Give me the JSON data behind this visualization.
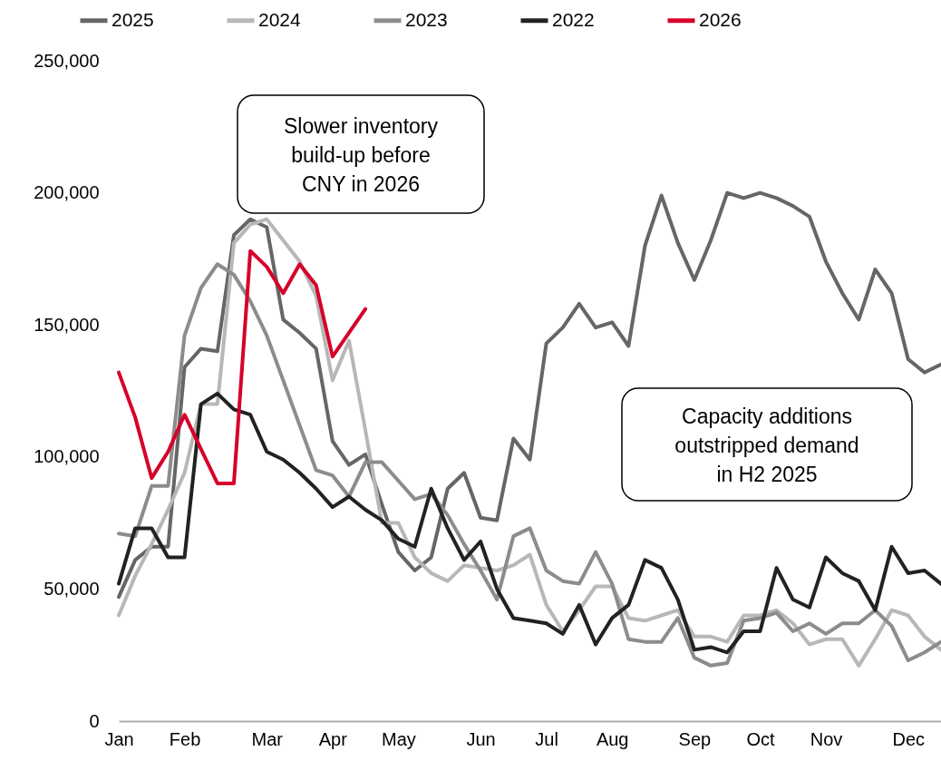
{
  "chart_data": {
    "type": "line",
    "categories": [
      "Jan",
      null,
      null,
      null,
      "Feb",
      null,
      null,
      null,
      null,
      "Mar",
      null,
      null,
      null,
      "Apr",
      null,
      null,
      null,
      "May",
      null,
      null,
      null,
      null,
      "Jun",
      null,
      null,
      null,
      "Jul",
      null,
      null,
      null,
      "Aug",
      null,
      null,
      null,
      null,
      "Sep",
      null,
      null,
      null,
      "Oct",
      null,
      null,
      null,
      "Nov",
      null,
      null,
      null,
      null,
      "Dec",
      null,
      null
    ],
    "series": [
      {
        "name": "2025",
        "color": "#666666",
        "values": [
          47000,
          61000,
          66000,
          66000,
          134000,
          141000,
          140000,
          184000,
          190000,
          187000,
          152000,
          147000,
          141000,
          106000,
          97000,
          101000,
          82000,
          64000,
          57000,
          62000,
          88000,
          94000,
          77000,
          76000,
          107000,
          99000,
          143000,
          149000,
          158000,
          149000,
          151000,
          142000,
          180000,
          199000,
          181000,
          167000,
          182000,
          200000,
          198000,
          200000,
          198000,
          195000,
          191000,
          174000,
          162000,
          152000,
          171000,
          162000,
          137000,
          132000,
          135000
        ]
      },
      {
        "name": "2024",
        "color": "#b7b7b7",
        "values": [
          40000,
          55000,
          67000,
          80000,
          94000,
          120000,
          120000,
          181000,
          188000,
          190000,
          182000,
          174000,
          161000,
          129000,
          144000,
          110000,
          75000,
          75000,
          62000,
          56000,
          53000,
          59000,
          58000,
          57000,
          59000,
          63000,
          44000,
          34000,
          42000,
          51000,
          51000,
          39000,
          38000,
          40000,
          42000,
          32000,
          32000,
          30000,
          40000,
          40000,
          42000,
          37000,
          29000,
          31000,
          31000,
          21000,
          31000,
          42000,
          40000,
          32000,
          27000
        ]
      },
      {
        "name": "2023",
        "color": "#8c8c8c",
        "values": [
          71000,
          70000,
          89000,
          89000,
          146000,
          164000,
          173000,
          169000,
          159000,
          146000,
          129000,
          112000,
          95000,
          93000,
          85000,
          98000,
          98000,
          91000,
          84000,
          86000,
          78000,
          67000,
          57000,
          46000,
          70000,
          73000,
          57000,
          53000,
          52000,
          64000,
          52000,
          31000,
          30000,
          30000,
          39000,
          24000,
          21000,
          22000,
          38000,
          39000,
          41000,
          34000,
          37000,
          33000,
          37000,
          37000,
          42000,
          36000,
          23000,
          26000,
          30000
        ]
      },
      {
        "name": "2022",
        "color": "#222222",
        "values": [
          52000,
          73000,
          73000,
          62000,
          62000,
          120000,
          124000,
          118000,
          116000,
          102000,
          99000,
          94000,
          88000,
          81000,
          85000,
          80000,
          76000,
          69000,
          66000,
          88000,
          73000,
          61000,
          68000,
          50000,
          39000,
          38000,
          37000,
          33000,
          44000,
          29000,
          39000,
          44000,
          61000,
          58000,
          46000,
          27000,
          28000,
          26000,
          34000,
          34000,
          58000,
          46000,
          43000,
          62000,
          56000,
          53000,
          42000,
          66000,
          56000,
          57000,
          52000
        ]
      },
      {
        "name": "2026",
        "color": "#d6002a",
        "values": [
          132000,
          115000,
          92000,
          102000,
          116000,
          103000,
          90000,
          90000,
          178000,
          172000,
          162000,
          173000,
          165000,
          138000,
          147000,
          156000,
          null,
          null,
          null,
          null,
          null,
          null,
          null,
          null,
          null,
          null,
          null,
          null,
          null,
          null,
          null,
          null,
          null,
          null,
          null,
          null,
          null,
          null,
          null,
          null,
          null,
          null,
          null,
          null,
          null,
          null,
          null,
          null,
          null,
          null,
          null
        ]
      }
    ],
    "ylim": [
      0,
      250000
    ],
    "yticks": [
      0,
      {
        "value": 50000,
        "label": "50,000"
      },
      {
        "value": 100000,
        "label": "100,000"
      },
      {
        "value": 150000,
        "label": "150,000"
      },
      {
        "value": 200000,
        "label": "200,000"
      },
      {
        "value": 250000,
        "label": "250,000"
      }
    ],
    "annotations": [
      "Slower inventory\nbuild-up before\nCNY in 2026",
      "Capacity additions\noutstripped demand\nin H2 2025"
    ],
    "legend": "top",
    "grid": false,
    "marker": "none",
    "line_style": "solid"
  }
}
